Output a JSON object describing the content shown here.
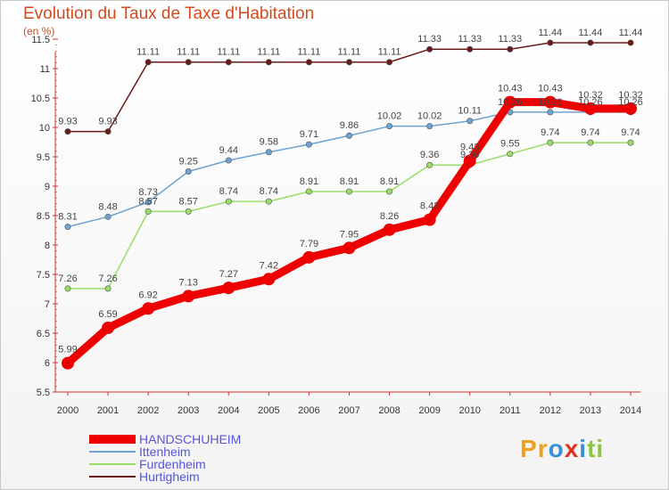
{
  "title": "Evolution du Taux de Taxe d'Habitation",
  "unit": "(en %)",
  "logo": {
    "text": "Proxiti",
    "letters": [
      {
        "ch": "P",
        "color": "#f0a020"
      },
      {
        "ch": "r",
        "color": "#f0a020"
      },
      {
        "ch": "o",
        "color": "#3a8fd8"
      },
      {
        "ch": "x",
        "color": "#e03020"
      },
      {
        "ch": "i",
        "color": "#3a8fd8"
      },
      {
        "ch": "t",
        "color": "#8cc63f"
      },
      {
        "ch": "i",
        "color": "#8cc63f"
      }
    ]
  },
  "chart_data": {
    "type": "line",
    "title": "Evolution du Taux de Taxe d'Habitation",
    "ylabel": "(en %)",
    "xlabel": "",
    "categories": [
      "2000",
      "2001",
      "2002",
      "2003",
      "2004",
      "2005",
      "2006",
      "2007",
      "2008",
      "2009",
      "2010",
      "2011",
      "2012",
      "2013",
      "2014"
    ],
    "ylim": [
      5.5,
      11.5
    ],
    "yticks": [
      5.5,
      6,
      6.5,
      7,
      7.5,
      8,
      8.5,
      9,
      9.5,
      10,
      10.5,
      11,
      11.5
    ],
    "yticklabels": [
      "5.5",
      "6",
      "6.5",
      "7",
      "7.5",
      "8",
      "8.5",
      "9",
      "9.5",
      "10",
      "10.5",
      "11",
      "11.5"
    ],
    "grid": false,
    "legend_position": "bottom-left",
    "series": [
      {
        "name": "Hurtigheim",
        "color": "#6b1a1a",
        "emphasis": false,
        "values": [
          9.93,
          9.93,
          11.11,
          11.11,
          11.11,
          11.11,
          11.11,
          11.11,
          11.11,
          11.33,
          11.33,
          11.33,
          11.44,
          11.44,
          11.44
        ],
        "labels": [
          "9.93",
          "9.93",
          "11.11",
          "11.11",
          "11.11",
          "11.11",
          "11.11",
          "11.11",
          "11.11",
          "11.33",
          "11.33",
          "11.33",
          "11.44",
          "11.44",
          "11.44"
        ]
      },
      {
        "name": "Ittenheim",
        "color": "#6fa3d0",
        "emphasis": false,
        "values": [
          8.31,
          8.48,
          8.73,
          9.25,
          9.44,
          9.58,
          9.71,
          9.86,
          10.02,
          10.02,
          10.11,
          10.26,
          10.26,
          10.26,
          10.26
        ],
        "labels": [
          "8.31",
          "8.48",
          "8.73",
          "9.25",
          "9.44",
          "9.58",
          "9.71",
          "9.86",
          "10.02",
          "10.02",
          "10.11",
          "10.26",
          "10.26",
          "10.26",
          "10.26"
        ]
      },
      {
        "name": "Furdenheim",
        "color": "#99dd66",
        "emphasis": false,
        "values": [
          7.26,
          7.26,
          8.57,
          8.57,
          8.74,
          8.74,
          8.91,
          8.91,
          8.91,
          9.36,
          9.36,
          9.55,
          9.74,
          9.74,
          9.74
        ],
        "labels": [
          "7.26",
          "7.26",
          "8.57",
          "8.57",
          "8.74",
          "8.74",
          "8.91",
          "8.91",
          "8.91",
          "9.36",
          "9.36",
          "9.55",
          "9.74",
          "9.74",
          "9.74"
        ]
      },
      {
        "name": "HANDSCHUHEIM",
        "color": "#ee0000",
        "emphasis": true,
        "values": [
          5.99,
          6.59,
          6.92,
          7.13,
          7.27,
          7.42,
          7.79,
          7.95,
          8.26,
          8.43,
          9.43,
          10.43,
          10.43,
          10.32,
          10.32
        ],
        "labels": [
          "5.99",
          "6.59",
          "6.92",
          "7.13",
          "7.27",
          "7.42",
          "7.79",
          "7.95",
          "8.26",
          "8.43",
          "9.43",
          "10.43",
          "10.43",
          "10.32",
          "10.32"
        ]
      }
    ],
    "legend": [
      "HANDSCHUHEIM",
      "Ittenheim",
      "Furdenheim",
      "Hurtigheim"
    ]
  }
}
